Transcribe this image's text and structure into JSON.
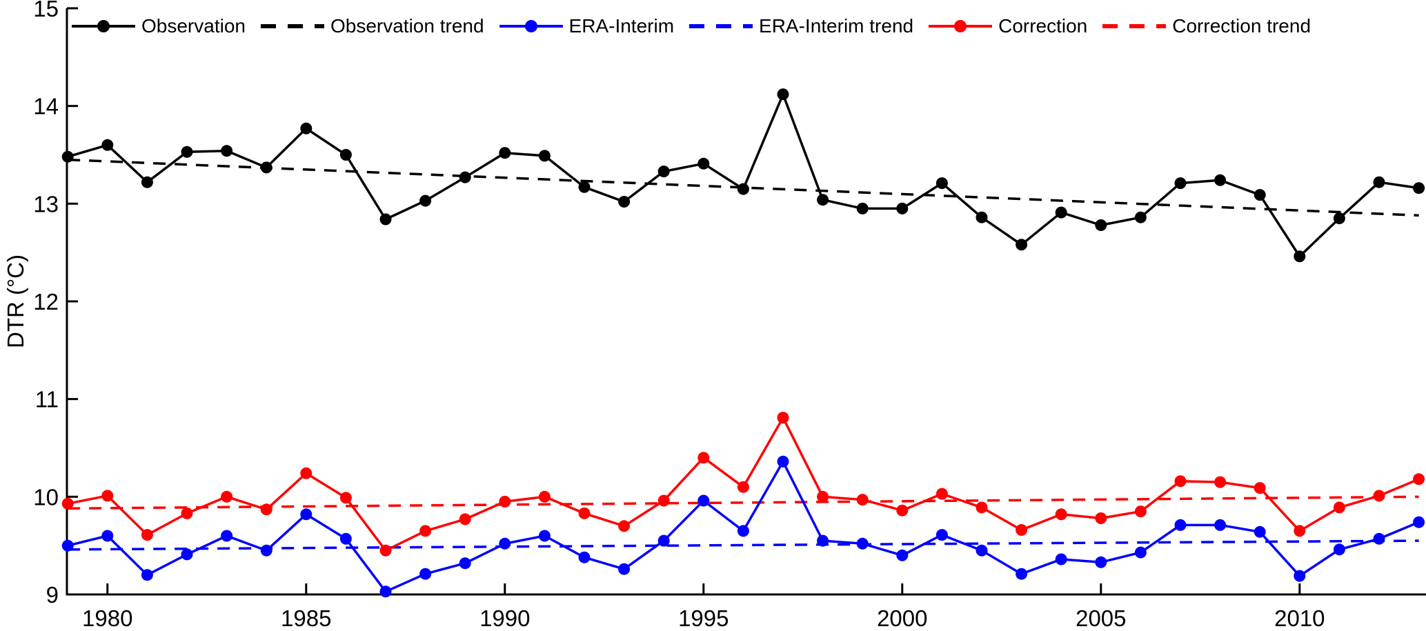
{
  "chart_data": {
    "type": "line",
    "title": "",
    "xlabel": "",
    "ylabel": "DTR (°C)",
    "grid": false,
    "legend_position": "top-inside",
    "x": [
      1979,
      1980,
      1981,
      1982,
      1983,
      1984,
      1985,
      1986,
      1987,
      1988,
      1989,
      1990,
      1991,
      1992,
      1993,
      1994,
      1995,
      1996,
      1997,
      1998,
      1999,
      2000,
      2001,
      2002,
      2003,
      2004,
      2005,
      2006,
      2007,
      2008,
      2009,
      2010,
      2011,
      2012,
      2013
    ],
    "xlim": [
      1978.98,
      2013.18
    ],
    "ylim": [
      9,
      15
    ],
    "x_ticks": [
      1980,
      1985,
      1990,
      1995,
      2000,
      2005,
      2010
    ],
    "y_ticks": [
      9,
      10,
      11,
      12,
      13,
      14,
      15
    ],
    "series": [
      {
        "name": "Observation",
        "color": "#000000",
        "line": "solid",
        "marker": "circle",
        "values": [
          13.48,
          13.6,
          13.22,
          13.53,
          13.54,
          13.37,
          13.77,
          13.5,
          12.84,
          13.03,
          13.27,
          13.52,
          13.49,
          13.17,
          13.02,
          13.33,
          13.41,
          13.15,
          14.12,
          13.04,
          12.95,
          12.95,
          13.21,
          12.86,
          12.58,
          12.91,
          12.78,
          12.86,
          13.21,
          13.24,
          13.09,
          12.46,
          12.85,
          13.22,
          13.16
        ]
      },
      {
        "name": "Observation trend",
        "color": "#000000",
        "line": "dashed",
        "marker": "none",
        "trend": [
          13.45,
          12.88
        ]
      },
      {
        "name": "ERA-Interim",
        "color": "#0000ff",
        "line": "solid",
        "marker": "circle",
        "values": [
          9.5,
          9.6,
          9.2,
          9.41,
          9.6,
          9.45,
          9.82,
          9.57,
          9.03,
          9.21,
          9.32,
          9.52,
          9.6,
          9.38,
          9.26,
          9.55,
          9.96,
          9.65,
          10.36,
          9.55,
          9.52,
          9.4,
          9.61,
          9.45,
          9.21,
          9.36,
          9.33,
          9.43,
          9.71,
          9.71,
          9.64,
          9.19,
          9.46,
          9.57,
          9.74
        ]
      },
      {
        "name": "ERA-Interim trend",
        "color": "#0000ff",
        "line": "dashed",
        "marker": "none",
        "trend": [
          9.46,
          9.55
        ]
      },
      {
        "name": "Correction",
        "color": "#ff0000",
        "line": "solid",
        "marker": "circle",
        "values": [
          9.93,
          10.01,
          9.61,
          9.83,
          10.0,
          9.87,
          10.24,
          9.99,
          9.45,
          9.65,
          9.77,
          9.95,
          10.0,
          9.83,
          9.7,
          9.96,
          10.4,
          10.1,
          10.81,
          10.0,
          9.97,
          9.86,
          10.03,
          9.89,
          9.66,
          9.82,
          9.78,
          9.85,
          10.16,
          10.15,
          10.09,
          9.65,
          9.89,
          10.01,
          10.18
        ]
      },
      {
        "name": "Correction trend",
        "color": "#ff0000",
        "line": "dashed",
        "marker": "none",
        "trend": [
          9.88,
          10.0
        ]
      }
    ]
  },
  "legend": {
    "items": [
      {
        "label": "Observation",
        "color": "#000000",
        "style": "solid-marker"
      },
      {
        "label": "Observation trend",
        "color": "#000000",
        "style": "dashed"
      },
      {
        "label": "ERA-Interim",
        "color": "#0000ff",
        "style": "solid-marker"
      },
      {
        "label": "ERA-Interim trend",
        "color": "#0000ff",
        "style": "dashed"
      },
      {
        "label": "Correction",
        "color": "#ff0000",
        "style": "solid-marker"
      },
      {
        "label": "Correction trend",
        "color": "#ff0000",
        "style": "dashed"
      }
    ]
  },
  "axes": {
    "y_label": "DTR (°C)",
    "x_tick_labels": [
      "1980",
      "1985",
      "1990",
      "1995",
      "2000",
      "2005",
      "2010"
    ],
    "y_tick_labels": [
      "9",
      "10",
      "11",
      "12",
      "13",
      "14",
      "15"
    ],
    "axis_color": "#000000"
  }
}
